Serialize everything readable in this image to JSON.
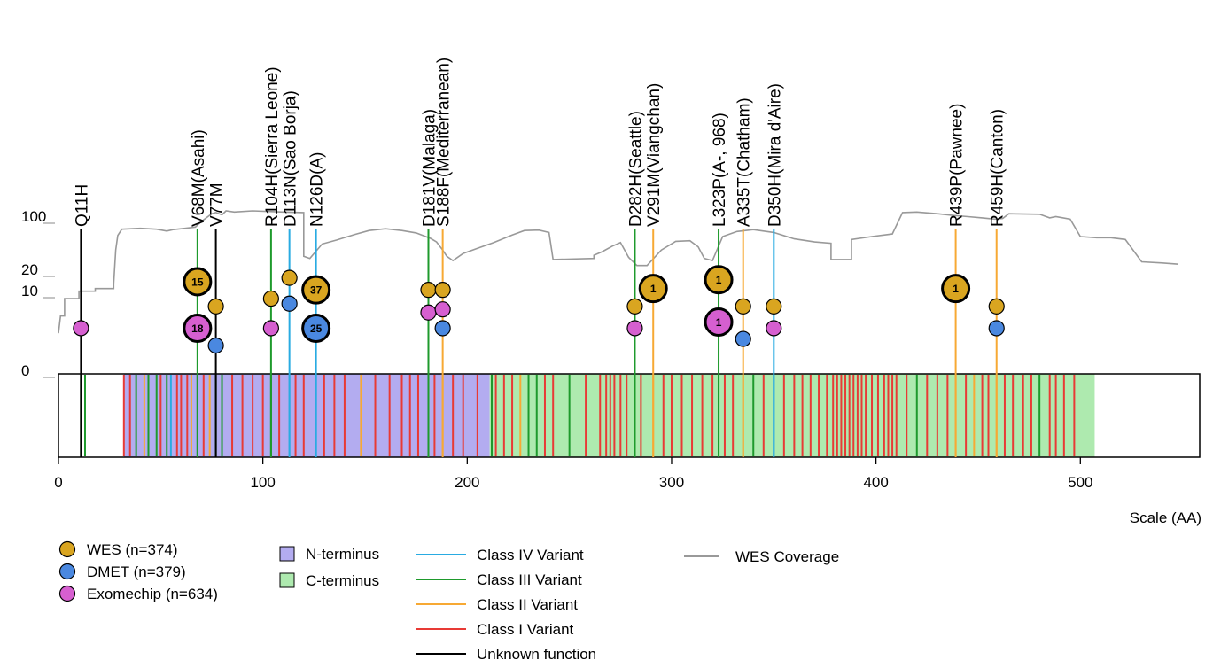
{
  "chart_data": {
    "type": "lollipop",
    "x_axis": {
      "label": "Scale (AA)",
      "range": [
        0,
        548
      ],
      "ticks": [
        0,
        100,
        200,
        300,
        400,
        500
      ]
    },
    "y_axis": {
      "ticks": [
        "0",
        "10",
        "20",
        "100"
      ],
      "scale": "log-like"
    },
    "protein_length_aa": 507,
    "domains": [
      {
        "name": "N-terminus",
        "start": 32,
        "end": 211,
        "color": "#b3acf0"
      },
      {
        "name": "C-terminus",
        "start": 211,
        "end": 507,
        "color": "#aeeaaf"
      }
    ],
    "variant_classes": [
      {
        "name": "Class IV Variant",
        "color": "#29abe2"
      },
      {
        "name": "Class III Variant",
        "color": "#1e9a2c"
      },
      {
        "name": "Class II Variant",
        "color": "#f7a934"
      },
      {
        "name": "Class I Variant",
        "color": "#e83a35"
      },
      {
        "name": "Unknown function",
        "color": "#000000"
      }
    ],
    "datasets": [
      {
        "name": "WES",
        "n_label": "(n=374)",
        "color": "#d9a520"
      },
      {
        "name": "DMET",
        "n_label": "(n=379)",
        "color": "#4a88e0"
      },
      {
        "name": "Exomechip",
        "n_label": "(n=634)",
        "color": "#d65fd0"
      }
    ],
    "coverage": {
      "name": "WES Coverage",
      "color": "#999999",
      "points": [
        [
          0,
          4
        ],
        [
          1,
          6
        ],
        [
          3,
          6
        ],
        [
          3,
          9
        ],
        [
          10,
          9
        ],
        [
          10,
          11
        ],
        [
          18,
          11
        ],
        [
          18,
          12
        ],
        [
          27,
          12
        ],
        [
          27,
          14
        ],
        [
          28,
          40
        ],
        [
          29,
          62
        ],
        [
          31,
          75
        ],
        [
          40,
          77
        ],
        [
          48,
          75
        ],
        [
          53,
          71
        ],
        [
          56,
          74
        ],
        [
          62,
          77
        ],
        [
          67,
          80
        ],
        [
          70,
          95
        ],
        [
          75,
          110
        ],
        [
          77,
          112
        ],
        [
          80,
          108
        ],
        [
          82,
          115
        ],
        [
          86,
          113
        ],
        [
          95,
          115
        ],
        [
          110,
          113
        ],
        [
          120,
          112
        ],
        [
          120,
          33
        ],
        [
          123,
          31
        ],
        [
          129,
          48
        ],
        [
          136,
          54
        ],
        [
          145,
          64
        ],
        [
          152,
          72
        ],
        [
          160,
          76
        ],
        [
          168,
          72
        ],
        [
          175,
          67
        ],
        [
          182,
          57
        ],
        [
          185,
          51
        ],
        [
          188,
          40
        ],
        [
          190,
          33
        ],
        [
          193,
          29
        ],
        [
          198,
          36
        ],
        [
          205,
          42
        ],
        [
          213,
          50
        ],
        [
          222,
          63
        ],
        [
          228,
          72
        ],
        [
          235,
          73
        ],
        [
          240,
          68
        ],
        [
          242,
          30
        ],
        [
          262,
          31
        ],
        [
          262,
          34
        ],
        [
          266,
          38
        ],
        [
          271,
          45
        ],
        [
          275,
          50
        ],
        [
          279,
          32
        ],
        [
          283,
          25
        ],
        [
          288,
          25
        ],
        [
          295,
          40
        ],
        [
          302,
          52
        ],
        [
          309,
          53
        ],
        [
          313,
          44
        ],
        [
          316,
          31
        ],
        [
          320,
          29
        ],
        [
          325,
          60
        ],
        [
          332,
          70
        ],
        [
          340,
          74
        ],
        [
          350,
          68
        ],
        [
          360,
          56
        ],
        [
          370,
          51
        ],
        [
          378,
          49
        ],
        [
          378,
          30
        ],
        [
          388,
          30
        ],
        [
          388,
          55
        ],
        [
          398,
          60
        ],
        [
          408,
          65
        ],
        [
          413,
          112
        ],
        [
          420,
          113
        ],
        [
          430,
          110
        ],
        [
          438,
          107
        ],
        [
          445,
          105
        ],
        [
          452,
          103
        ],
        [
          458,
          101
        ],
        [
          462,
          102
        ],
        [
          465,
          110
        ],
        [
          480,
          109
        ],
        [
          485,
          103
        ],
        [
          488,
          105
        ],
        [
          495,
          101
        ],
        [
          500,
          60
        ],
        [
          508,
          58
        ],
        [
          515,
          58
        ],
        [
          522,
          55
        ],
        [
          530,
          28
        ],
        [
          540,
          27
        ],
        [
          548,
          26
        ]
      ]
    },
    "variants": [
      {
        "label": "Q11H",
        "aa": 11,
        "class": "Unknown function"
      },
      {
        "label": "V68M(Asahi)",
        "aa": 68,
        "class": "Class III Variant"
      },
      {
        "label": "V77M",
        "aa": 77,
        "class": "Unknown function"
      },
      {
        "label": "R104H(Sierra Leone)",
        "aa": 104,
        "class": "Class III Variant"
      },
      {
        "label": "D113N(Sao Borja)",
        "aa": 113,
        "class": "Class IV Variant"
      },
      {
        "label": "N126D(A)",
        "aa": 126,
        "class": "Class IV Variant"
      },
      {
        "label": "D181V(Malaga)",
        "aa": 181,
        "class": "Class III Variant"
      },
      {
        "label": "S188F(Mediterranean)",
        "aa": 188,
        "class": "Class II Variant"
      },
      {
        "label": "D282H(Seattle)",
        "aa": 282,
        "class": "Class III Variant"
      },
      {
        "label": "V291M(Viangchan)",
        "aa": 291,
        "class": "Class II Variant"
      },
      {
        "label": "L323P(A-, 968)",
        "aa": 323,
        "class": "Class III Variant"
      },
      {
        "label": "A335T(Chatham)",
        "aa": 335,
        "class": "Class II Variant"
      },
      {
        "label": "D350H(Mira d'Aire)",
        "aa": 350,
        "class": "Class IV Variant"
      },
      {
        "label": "R439P(Pawnee)",
        "aa": 439,
        "class": "Class II Variant"
      },
      {
        "label": "R459H(Canton)",
        "aa": 459,
        "class": "Class II Variant"
      }
    ],
    "observations": [
      {
        "aa": 11,
        "dataset": "Exomechip",
        "count_text": "",
        "level": 4.5
      },
      {
        "aa": 68,
        "dataset": "WES",
        "count_text": "15",
        "level": 15
      },
      {
        "aa": 68,
        "dataset": "Exomechip",
        "count_text": "18",
        "level": 4.5
      },
      {
        "aa": 77,
        "dataset": "WES",
        "count_text": "",
        "level": 7.5
      },
      {
        "aa": 77,
        "dataset": "DMET",
        "count_text": "",
        "level": 3
      },
      {
        "aa": 104,
        "dataset": "WES",
        "count_text": "",
        "level": 9
      },
      {
        "aa": 104,
        "dataset": "Exomechip",
        "count_text": "",
        "level": 4.5
      },
      {
        "aa": 113,
        "dataset": "WES",
        "count_text": "",
        "level": 17
      },
      {
        "aa": 113,
        "dataset": "DMET",
        "count_text": "",
        "level": 8
      },
      {
        "aa": 126,
        "dataset": "WES",
        "count_text": "37",
        "level": 11.5
      },
      {
        "aa": 126,
        "dataset": "DMET",
        "count_text": "25",
        "level": 4.5
      },
      {
        "aa": 181,
        "dataset": "WES",
        "count_text": "",
        "level": 11.5
      },
      {
        "aa": 181,
        "dataset": "Exomechip",
        "count_text": "",
        "level": 6.5
      },
      {
        "aa": 188,
        "dataset": "WES",
        "count_text": "",
        "level": 11.5
      },
      {
        "aa": 188,
        "dataset": "Exomechip",
        "count_text": "",
        "level": 7
      },
      {
        "aa": 188,
        "dataset": "DMET",
        "count_text": "",
        "level": 4.5
      },
      {
        "aa": 282,
        "dataset": "WES",
        "count_text": "",
        "level": 7.5
      },
      {
        "aa": 282,
        "dataset": "Exomechip",
        "count_text": "",
        "level": 4.5
      },
      {
        "aa": 291,
        "dataset": "WES",
        "count_text": "1",
        "level": 12
      },
      {
        "aa": 323,
        "dataset": "WES",
        "count_text": "1",
        "level": 16
      },
      {
        "aa": 323,
        "dataset": "Exomechip",
        "count_text": "1",
        "level": 5.2
      },
      {
        "aa": 335,
        "dataset": "WES",
        "count_text": "",
        "level": 7.5
      },
      {
        "aa": 335,
        "dataset": "DMET",
        "count_text": "",
        "level": 3.5
      },
      {
        "aa": 350,
        "dataset": "WES",
        "count_text": "",
        "level": 7.5
      },
      {
        "aa": 350,
        "dataset": "Exomechip",
        "count_text": "",
        "level": 4.5
      },
      {
        "aa": 439,
        "dataset": "WES",
        "count_text": "1",
        "level": 12
      },
      {
        "aa": 459,
        "dataset": "WES",
        "count_text": "",
        "level": 7.5
      },
      {
        "aa": 459,
        "dataset": "DMET",
        "count_text": "",
        "level": 4.5
      }
    ],
    "stripes": [
      {
        "aa": 11,
        "class": "Class III Variant"
      },
      {
        "aa": 13,
        "class": "Class III Variant"
      },
      {
        "aa": 32,
        "class": "Class I Variant"
      },
      {
        "aa": 35,
        "class": "Class I Variant"
      },
      {
        "aa": 38,
        "class": "Class III Variant"
      },
      {
        "aa": 42,
        "class": "Class II Variant"
      },
      {
        "aa": 44,
        "class": "Class III Variant"
      },
      {
        "aa": 48,
        "class": "Class III Variant"
      },
      {
        "aa": 50,
        "class": "Class I Variant"
      },
      {
        "aa": 53,
        "class": "Class III Variant"
      },
      {
        "aa": 55,
        "class": "Class IV Variant"
      },
      {
        "aa": 58,
        "class": "Class I Variant"
      },
      {
        "aa": 60,
        "class": "Class I Variant"
      },
      {
        "aa": 63,
        "class": "Class I Variant"
      },
      {
        "aa": 65,
        "class": "Class II Variant"
      },
      {
        "aa": 68,
        "class": "Class III Variant"
      },
      {
        "aa": 71,
        "class": "Class I Variant"
      },
      {
        "aa": 74,
        "class": "Class II Variant"
      },
      {
        "aa": 77,
        "class": "Class III Variant"
      },
      {
        "aa": 80,
        "class": "Class III Variant"
      },
      {
        "aa": 85,
        "class": "Class I Variant"
      },
      {
        "aa": 90,
        "class": "Class I Variant"
      },
      {
        "aa": 95,
        "class": "Class I Variant"
      },
      {
        "aa": 100,
        "class": "Class I Variant"
      },
      {
        "aa": 104,
        "class": "Class III Variant"
      },
      {
        "aa": 108,
        "class": "Class I Variant"
      },
      {
        "aa": 113,
        "class": "Class IV Variant"
      },
      {
        "aa": 116,
        "class": "Class I Variant"
      },
      {
        "aa": 120,
        "class": "Class I Variant"
      },
      {
        "aa": 126,
        "class": "Class IV Variant"
      },
      {
        "aa": 130,
        "class": "Class I Variant"
      },
      {
        "aa": 135,
        "class": "Class I Variant"
      },
      {
        "aa": 140,
        "class": "Class I Variant"
      },
      {
        "aa": 148,
        "class": "Class II Variant"
      },
      {
        "aa": 155,
        "class": "Class I Variant"
      },
      {
        "aa": 162,
        "class": "Class I Variant"
      },
      {
        "aa": 168,
        "class": "Class I Variant"
      },
      {
        "aa": 172,
        "class": "Class I Variant"
      },
      {
        "aa": 176,
        "class": "Class I Variant"
      },
      {
        "aa": 181,
        "class": "Class III Variant"
      },
      {
        "aa": 184,
        "class": "Class I Variant"
      },
      {
        "aa": 188,
        "class": "Class II Variant"
      },
      {
        "aa": 193,
        "class": "Class I Variant"
      },
      {
        "aa": 198,
        "class": "Class I Variant"
      },
      {
        "aa": 205,
        "class": "Class I Variant"
      },
      {
        "aa": 212,
        "class": "Class III Variant"
      },
      {
        "aa": 214,
        "class": "Class I Variant"
      },
      {
        "aa": 218,
        "class": "Class I Variant"
      },
      {
        "aa": 222,
        "class": "Class I Variant"
      },
      {
        "aa": 226,
        "class": "Class II Variant"
      },
      {
        "aa": 230,
        "class": "Class III Variant"
      },
      {
        "aa": 234,
        "class": "Class III Variant"
      },
      {
        "aa": 238,
        "class": "Class I Variant"
      },
      {
        "aa": 242,
        "class": "Class I Variant"
      },
      {
        "aa": 250,
        "class": "Class III Variant"
      },
      {
        "aa": 258,
        "class": "Class I Variant"
      },
      {
        "aa": 265,
        "class": "Class I Variant"
      },
      {
        "aa": 268,
        "class": "Class I Variant"
      },
      {
        "aa": 270,
        "class": "Class I Variant"
      },
      {
        "aa": 272,
        "class": "Class I Variant"
      },
      {
        "aa": 275,
        "class": "Class I Variant"
      },
      {
        "aa": 278,
        "class": "Class I Variant"
      },
      {
        "aa": 282,
        "class": "Class III Variant"
      },
      {
        "aa": 285,
        "class": "Class I Variant"
      },
      {
        "aa": 291,
        "class": "Class II Variant"
      },
      {
        "aa": 296,
        "class": "Class I Variant"
      },
      {
        "aa": 300,
        "class": "Class I Variant"
      },
      {
        "aa": 305,
        "class": "Class I Variant"
      },
      {
        "aa": 310,
        "class": "Class I Variant"
      },
      {
        "aa": 315,
        "class": "Class I Variant"
      },
      {
        "aa": 320,
        "class": "Class I Variant"
      },
      {
        "aa": 323,
        "class": "Class III Variant"
      },
      {
        "aa": 326,
        "class": "Class I Variant"
      },
      {
        "aa": 330,
        "class": "Class I Variant"
      },
      {
        "aa": 335,
        "class": "Class II Variant"
      },
      {
        "aa": 340,
        "class": "Class III Variant"
      },
      {
        "aa": 345,
        "class": "Class I Variant"
      },
      {
        "aa": 350,
        "class": "Class IV Variant"
      },
      {
        "aa": 355,
        "class": "Class I Variant"
      },
      {
        "aa": 360,
        "class": "Class I Variant"
      },
      {
        "aa": 364,
        "class": "Class I Variant"
      },
      {
        "aa": 368,
        "class": "Class I Variant"
      },
      {
        "aa": 372,
        "class": "Class I Variant"
      },
      {
        "aa": 376,
        "class": "Class I Variant"
      },
      {
        "aa": 379,
        "class": "Class I Variant"
      },
      {
        "aa": 381,
        "class": "Class I Variant"
      },
      {
        "aa": 383,
        "class": "Class I Variant"
      },
      {
        "aa": 385,
        "class": "Class I Variant"
      },
      {
        "aa": 387,
        "class": "Class I Variant"
      },
      {
        "aa": 389,
        "class": "Class I Variant"
      },
      {
        "aa": 391,
        "class": "Class I Variant"
      },
      {
        "aa": 393,
        "class": "Class I Variant"
      },
      {
        "aa": 395,
        "class": "Class I Variant"
      },
      {
        "aa": 398,
        "class": "Class I Variant"
      },
      {
        "aa": 401,
        "class": "Class I Variant"
      },
      {
        "aa": 404,
        "class": "Class I Variant"
      },
      {
        "aa": 406,
        "class": "Class I Variant"
      },
      {
        "aa": 408,
        "class": "Class I Variant"
      },
      {
        "aa": 410,
        "class": "Class I Variant"
      },
      {
        "aa": 415,
        "class": "Class I Variant"
      },
      {
        "aa": 420,
        "class": "Class III Variant"
      },
      {
        "aa": 425,
        "class": "Class I Variant"
      },
      {
        "aa": 430,
        "class": "Class I Variant"
      },
      {
        "aa": 435,
        "class": "Class I Variant"
      },
      {
        "aa": 439,
        "class": "Class II Variant"
      },
      {
        "aa": 444,
        "class": "Class I Variant"
      },
      {
        "aa": 448,
        "class": "Class II Variant"
      },
      {
        "aa": 452,
        "class": "Class I Variant"
      },
      {
        "aa": 455,
        "class": "Class I Variant"
      },
      {
        "aa": 459,
        "class": "Class II Variant"
      },
      {
        "aa": 463,
        "class": "Class I Variant"
      },
      {
        "aa": 467,
        "class": "Class I Variant"
      },
      {
        "aa": 472,
        "class": "Class I Variant"
      },
      {
        "aa": 476,
        "class": "Class I Variant"
      },
      {
        "aa": 480,
        "class": "Class III Variant"
      },
      {
        "aa": 485,
        "class": "Class I Variant"
      },
      {
        "aa": 488,
        "class": "Class I Variant"
      },
      {
        "aa": 492,
        "class": "Class I Variant"
      },
      {
        "aa": 497,
        "class": "Class I Variant"
      }
    ]
  }
}
